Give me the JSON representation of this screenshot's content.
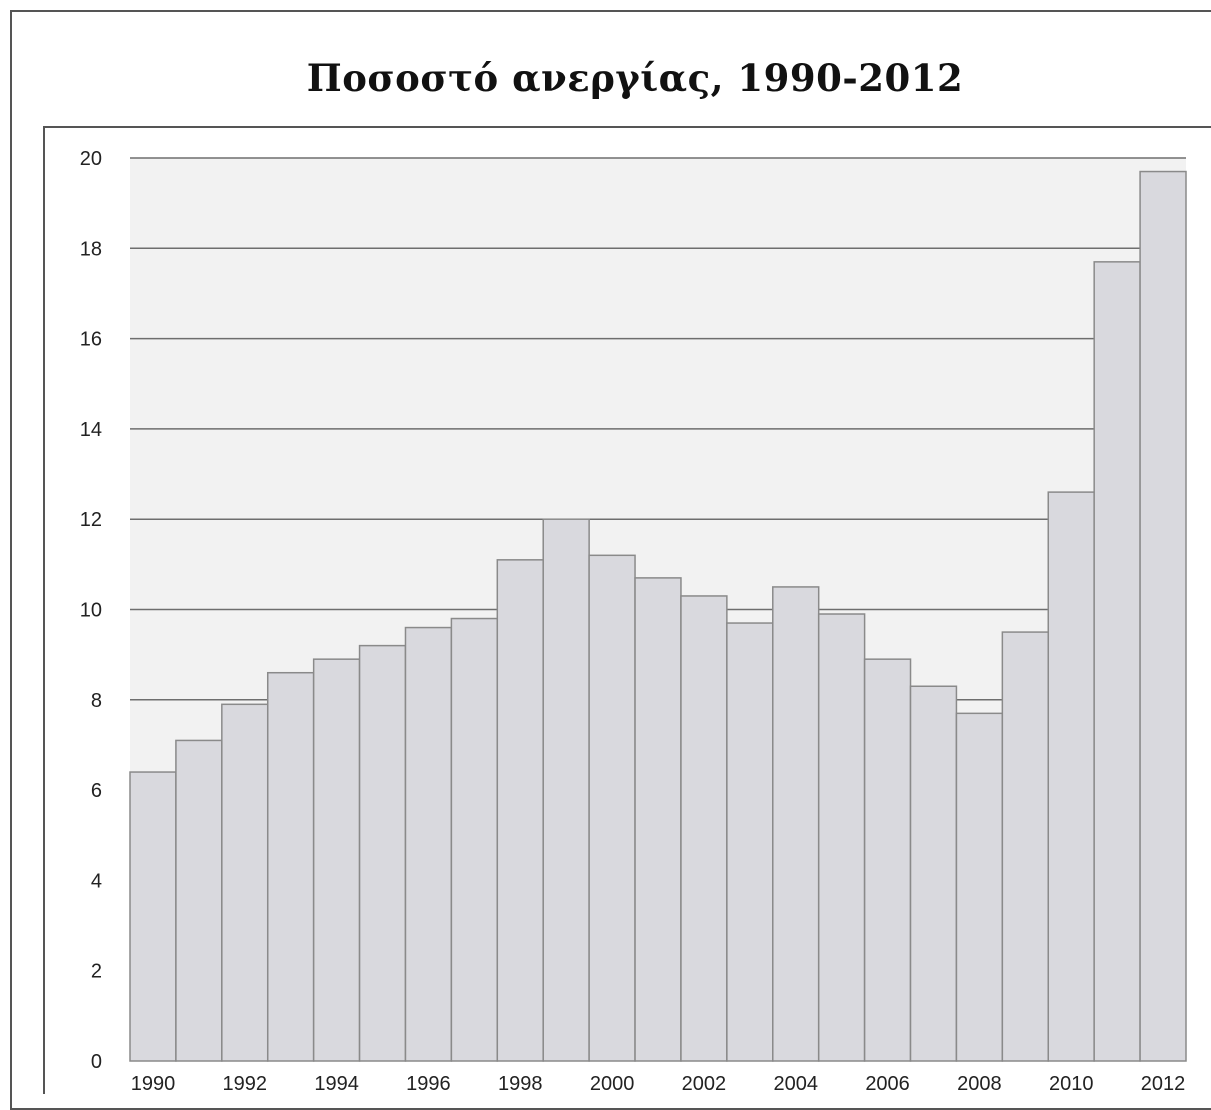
{
  "chart_data": {
    "type": "bar",
    "title": "Ποσοστό ανεργίας, 1990-2012",
    "xlabel": "",
    "ylabel": "",
    "categories": [
      "1990",
      "1991",
      "1992",
      "1993",
      "1994",
      "1995",
      "1996",
      "1997",
      "1998",
      "1999",
      "2000",
      "2001",
      "2002",
      "2003",
      "2004",
      "2005",
      "2006",
      "2007",
      "2008",
      "2009",
      "2010",
      "2011",
      "2012"
    ],
    "values": [
      6.4,
      7.1,
      7.9,
      8.6,
      8.9,
      9.2,
      9.6,
      9.8,
      11.1,
      12.0,
      11.2,
      10.7,
      10.3,
      9.7,
      10.5,
      9.9,
      8.9,
      8.3,
      7.7,
      9.5,
      12.6,
      17.7,
      19.7
    ],
    "x_tick_labels": [
      "1990",
      "1992",
      "1994",
      "1996",
      "1998",
      "2000",
      "2002",
      "2004",
      "2006",
      "2008",
      "2010",
      "2012"
    ],
    "y_tick_labels": [
      "0",
      "2",
      "4",
      "6",
      "8",
      "10",
      "12",
      "14",
      "16",
      "18",
      "20"
    ],
    "ylim": [
      0,
      20
    ],
    "grid": true,
    "colors": {
      "bar_fill": "#d9d9de",
      "bar_stroke": "#8a8a8a",
      "plot_background": "#f2f2f2",
      "gridline": "#6e6e6e"
    }
  }
}
